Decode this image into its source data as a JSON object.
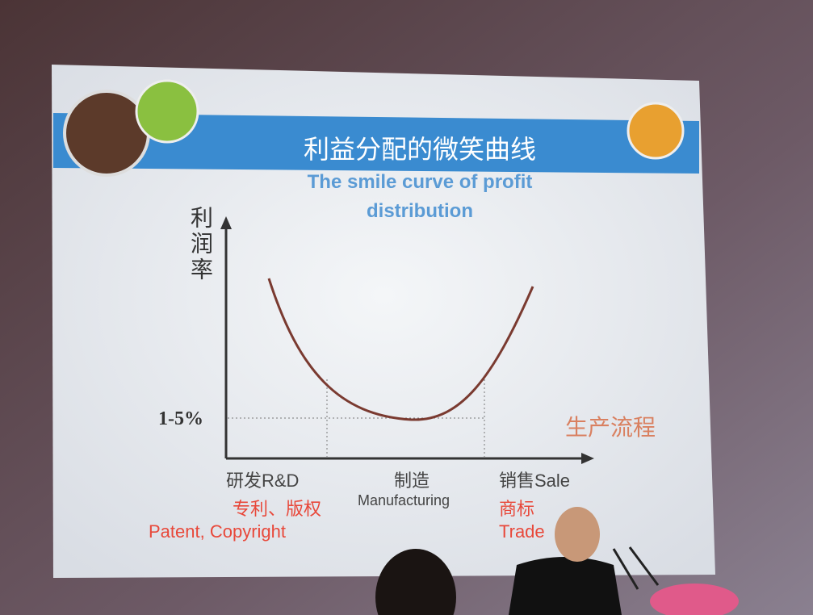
{
  "slide": {
    "title": "利益分配的微笑曲线",
    "subtitle": "The smile curve of profit distribution",
    "y_axis_label": "利润率",
    "baseline_label": "1-5%",
    "x_axis_label": "生产流程",
    "stages": [
      {
        "label": "研发R&D",
        "sublabel_cn": "专利、版权",
        "sublabel_en": "Patent, Copyright"
      },
      {
        "label": "制造",
        "sublabel_en": "Manufacturing"
      },
      {
        "label": "销售Sale",
        "sublabel_cn": "商标",
        "sublabel_en": "Trade"
      }
    ]
  }
}
